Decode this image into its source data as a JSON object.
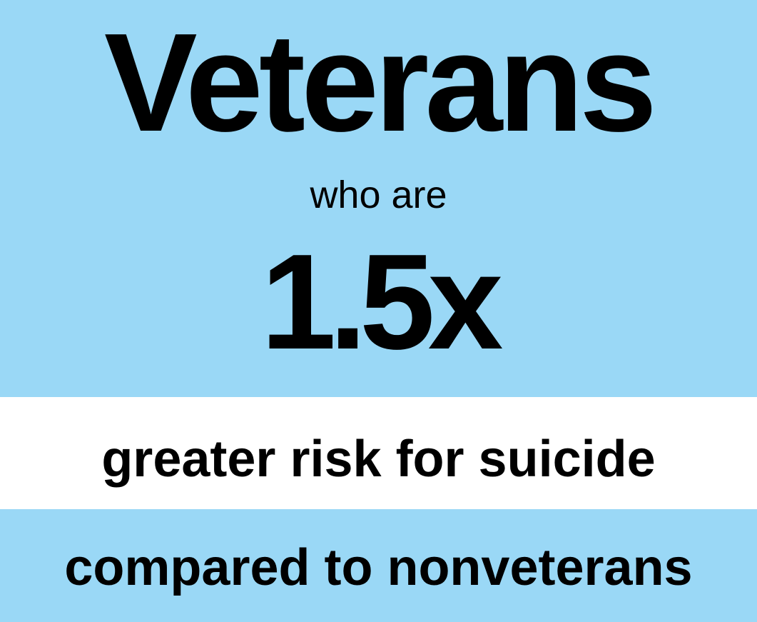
{
  "headline": "Veterans",
  "subline": "who are",
  "stat": "1.5x",
  "mid_line": "greater risk for suicide",
  "bottom_line": "compared to nonveterans",
  "colors": {
    "panel_blue": "#9ad8f6",
    "panel_white": "#ffffff",
    "text": "#000000"
  }
}
